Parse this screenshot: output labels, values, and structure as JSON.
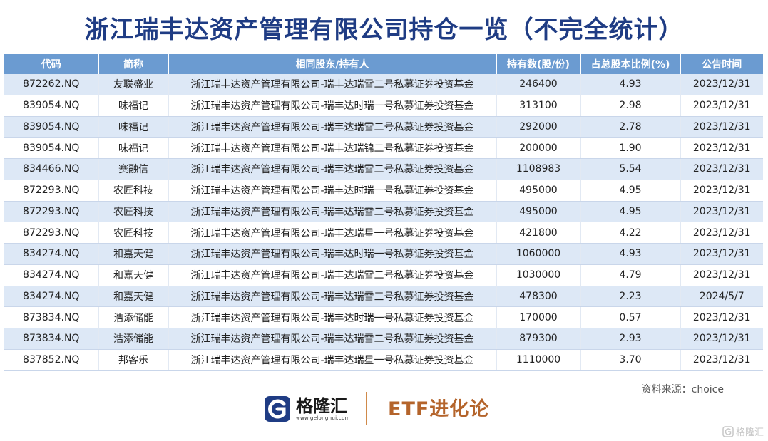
{
  "title": "浙江瑞丰达资产管理有限公司持仓一览（不完全统计）",
  "table": {
    "headers": [
      "代码",
      "简称",
      "相同股东/持有人",
      "持有数(股/份)",
      "占总股本比例(%)",
      "公告时间"
    ],
    "rows": [
      {
        "code": "872262.NQ",
        "name": "友联盛业",
        "holder": "浙江瑞丰达资产管理有限公司-瑞丰达瑞雪二号私募证券投资基金",
        "shares": "246400",
        "ratio": "4.93",
        "date": "2023/12/31"
      },
      {
        "code": "839054.NQ",
        "name": "味福记",
        "holder": "浙江瑞丰达资产管理有限公司-瑞丰达时瑞一号私募证券投资基金",
        "shares": "313100",
        "ratio": "2.98",
        "date": "2023/12/31"
      },
      {
        "code": "839054.NQ",
        "name": "味福记",
        "holder": "浙江瑞丰达资产管理有限公司-瑞丰达瑞雪二号私募证券投资基金",
        "shares": "292000",
        "ratio": "2.78",
        "date": "2023/12/31"
      },
      {
        "code": "839054.NQ",
        "name": "味福记",
        "holder": "浙江瑞丰达资产管理有限公司-瑞丰达瑞锦二号私募证券投资基金",
        "shares": "200000",
        "ratio": "1.90",
        "date": "2023/12/31"
      },
      {
        "code": "834466.NQ",
        "name": "赛融信",
        "holder": "浙江瑞丰达资产管理有限公司-瑞丰达瑞雪二号私募证券投资基金",
        "shares": "1108983",
        "ratio": "5.54",
        "date": "2023/12/31"
      },
      {
        "code": "872293.NQ",
        "name": "农匠科技",
        "holder": "浙江瑞丰达资产管理有限公司-瑞丰达时瑞一号私募证券投资基金",
        "shares": "495000",
        "ratio": "4.95",
        "date": "2023/12/31"
      },
      {
        "code": "872293.NQ",
        "name": "农匠科技",
        "holder": "浙江瑞丰达资产管理有限公司-瑞丰达瑞雪二号私募证券投资基金",
        "shares": "495000",
        "ratio": "4.95",
        "date": "2023/12/31"
      },
      {
        "code": "872293.NQ",
        "name": "农匠科技",
        "holder": "浙江瑞丰达资产管理有限公司-瑞丰达瑞星一号私募证券投资基金",
        "shares": "421800",
        "ratio": "4.22",
        "date": "2023/12/31"
      },
      {
        "code": "834274.NQ",
        "name": "和嘉天健",
        "holder": "浙江瑞丰达资产管理有限公司-瑞丰达时瑞一号私募证券投资基金",
        "shares": "1060000",
        "ratio": "4.93",
        "date": "2023/12/31"
      },
      {
        "code": "834274.NQ",
        "name": "和嘉天健",
        "holder": "浙江瑞丰达资产管理有限公司-瑞丰达瑞雪二号私募证券投资基金",
        "shares": "1030000",
        "ratio": "4.79",
        "date": "2023/12/31"
      },
      {
        "code": "834274.NQ",
        "name": "和嘉天健",
        "holder": "浙江瑞丰达资产管理有限公司-瑞丰达瑞雪三号私募证券投资基金",
        "shares": "478300",
        "ratio": "2.23",
        "date": "2024/5/7"
      },
      {
        "code": "873834.NQ",
        "name": "浩添储能",
        "holder": "浙江瑞丰达资产管理有限公司-瑞丰达时瑞一号私募证券投资基金",
        "shares": "170000",
        "ratio": "0.57",
        "date": "2023/12/31"
      },
      {
        "code": "873834.NQ",
        "name": "浩添储能",
        "holder": "浙江瑞丰达资产管理有限公司-瑞丰达瑞雪二号私募证券投资基金",
        "shares": "879300",
        "ratio": "2.93",
        "date": "2023/12/31"
      },
      {
        "code": "837852.NQ",
        "name": "邦客乐",
        "holder": "浙江瑞丰达资产管理有限公司-瑞丰达瑞星一号私募证券投资基金",
        "shares": "1110000",
        "ratio": "3.70",
        "date": "2023/12/31"
      }
    ]
  },
  "source": "资料来源：choice",
  "footer": {
    "logo_name": "格隆汇",
    "logo_url": "www.gelonghui.com",
    "brand": "ETF进化论",
    "logo_icon": "gelonghui-logo-icon"
  },
  "watermark": {
    "text": "格隆汇",
    "icon": "gelonghui-watermark-icon"
  },
  "colors": {
    "title": "#1f3c84",
    "header_bg": "#6b9bd1",
    "row_alt_bg": "#dde8f6",
    "brand": "#b4642b"
  }
}
